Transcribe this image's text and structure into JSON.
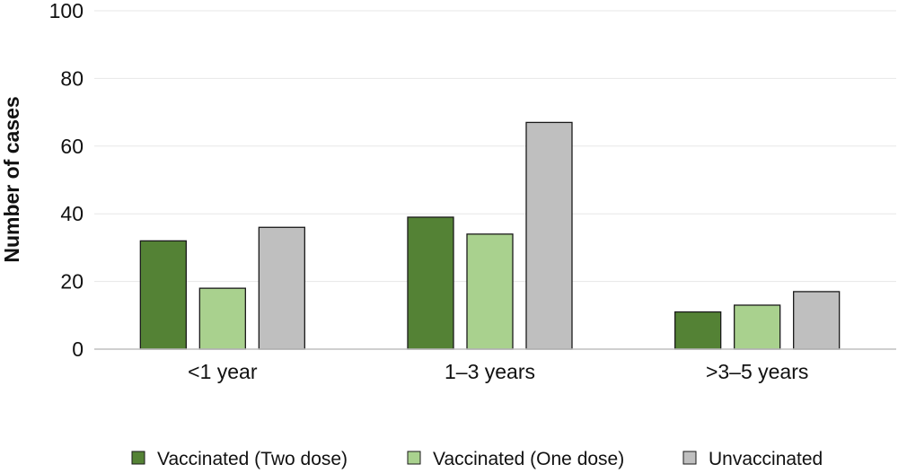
{
  "chart_data": {
    "type": "bar",
    "title": "",
    "xlabel": "",
    "ylabel": "Number of cases",
    "categories": [
      "<1 year",
      "1–3 years",
      ">3–5 years"
    ],
    "series": [
      {
        "name": "Vaccinated (Two dose)",
        "values": [
          32,
          39,
          11
        ],
        "color": "#548235"
      },
      {
        "name": "Vaccinated (One dose)",
        "values": [
          18,
          34,
          13
        ],
        "color": "#a9d18e"
      },
      {
        "name": "Unvaccinated",
        "values": [
          36,
          67,
          17
        ],
        "color": "#bfbfbf"
      }
    ],
    "ylim": [
      0,
      100
    ],
    "yticks": [
      0,
      20,
      40,
      60,
      80,
      100
    ],
    "grid": true,
    "legend_position": "bottom"
  }
}
